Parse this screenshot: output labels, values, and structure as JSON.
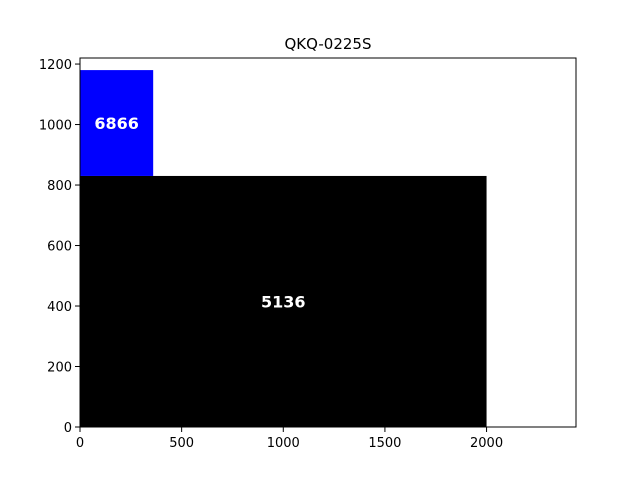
{
  "chart_data": {
    "type": "treemap-rect",
    "title": "QKQ-0225S",
    "xlim": [
      0,
      2440
    ],
    "ylim": [
      0,
      1220
    ],
    "xticks": [
      0,
      500,
      1000,
      1500,
      2000
    ],
    "yticks": [
      0,
      200,
      400,
      600,
      800,
      1000,
      1200
    ],
    "rects": [
      {
        "label": "5136",
        "x0": 0,
        "y0": 0,
        "x1": 2000,
        "y1": 830,
        "color": "#000000"
      },
      {
        "label": "6866",
        "x0": 0,
        "y0": 830,
        "x1": 360,
        "y1": 1180,
        "color": "#0000ff"
      }
    ],
    "grid": false
  }
}
